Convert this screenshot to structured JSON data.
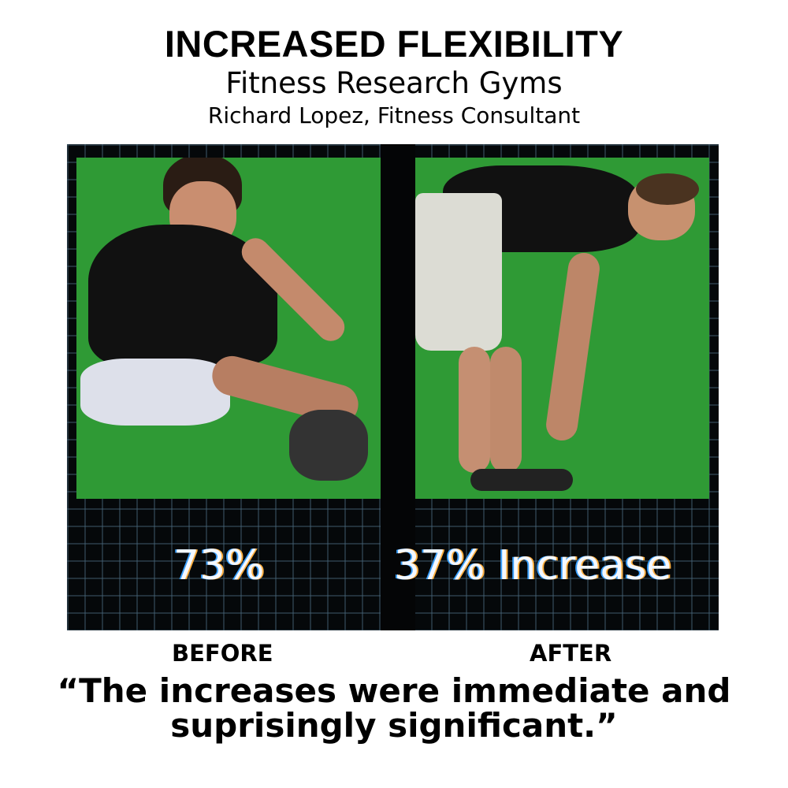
{
  "title": "INCREASED FLEXIBILITY",
  "subtitle": "Fitness Research Gyms",
  "byline": "Richard Lopez, Fitness Consultant",
  "before": {
    "stat": "73%",
    "label": "BEFORE"
  },
  "after": {
    "stat": "37% Increase",
    "label": "AFTER"
  },
  "quote_line1": "“The increases were immediate and",
  "quote_line2": "suprisingly significant.”"
}
